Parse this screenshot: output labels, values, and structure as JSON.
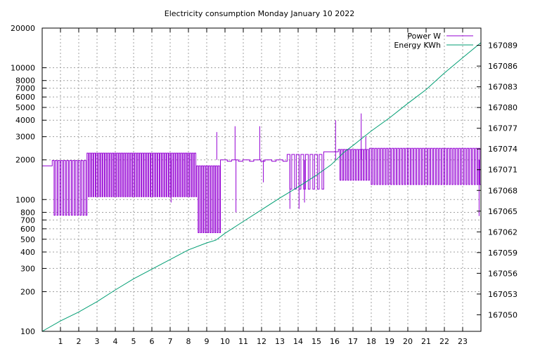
{
  "chart_data": {
    "type": "line",
    "title": "Electricity consumption Monday January 10 2022",
    "x": {
      "range": [
        0,
        24
      ],
      "tick_labels": [
        "1",
        "2",
        "3",
        "4",
        "5",
        "6",
        "7",
        "8",
        "9",
        "10",
        "11",
        "12",
        "13",
        "14",
        "15",
        "16",
        "17",
        "18",
        "19",
        "20",
        "21",
        "22",
        "23"
      ]
    },
    "y_left": {
      "scale": "log",
      "range": [
        100,
        20000
      ],
      "tick_labels": [
        "100",
        "200",
        "300",
        "400",
        "500",
        "600",
        "700",
        "800",
        "1000",
        "2000",
        "3000",
        "4000",
        "5000",
        "6000",
        "7000",
        "8000",
        "10000",
        "20000"
      ]
    },
    "y_right": {
      "range": [
        167047.6,
        167091.5
      ],
      "tick_labels": [
        "167050",
        "167053",
        "167056",
        "167059",
        "167062",
        "167065",
        "167068",
        "167071",
        "167074",
        "167077",
        "167080",
        "167083",
        "167086",
        "167089"
      ]
    },
    "grid": true,
    "legend_position": "top-right",
    "series": [
      {
        "name": "Power W",
        "axis": "left",
        "color": "#9400d3",
        "segments": [
          {
            "x0": 0.0,
            "x1": 0.55,
            "hi": 1800,
            "lo": 1800,
            "n": 1
          },
          {
            "x0": 0.55,
            "x1": 2.45,
            "hi": 1980,
            "lo": 760,
            "n": 12
          },
          {
            "x0": 2.45,
            "x1": 8.45,
            "hi": 2250,
            "lo": 1050,
            "n": 48
          },
          {
            "x0": 8.45,
            "x1": 9.75,
            "hi": 1800,
            "lo": 560,
            "n": 10
          },
          {
            "x0": 9.75,
            "x1": 13.4,
            "hi": 2000,
            "lo": 1950,
            "n": 6
          },
          {
            "x0": 13.4,
            "x1": 15.4,
            "hi": 2200,
            "lo": 1200,
            "n": 8
          },
          {
            "x0": 15.4,
            "x1": 16.2,
            "hi": 2300,
            "lo": 2300,
            "n": 1
          },
          {
            "x0": 16.2,
            "x1": 17.9,
            "hi": 2400,
            "lo": 1400,
            "n": 12
          },
          {
            "x0": 17.9,
            "x1": 24.0,
            "hi": 2450,
            "lo": 1300,
            "n": 40
          }
        ],
        "spikes": [
          {
            "x": 9.55,
            "y": 3250
          },
          {
            "x": 10.55,
            "y": 3600
          },
          {
            "x": 11.9,
            "y": 3600
          },
          {
            "x": 12.1,
            "y": 1350
          },
          {
            "x": 13.55,
            "y": 850
          },
          {
            "x": 14.05,
            "y": 850
          },
          {
            "x": 14.35,
            "y": 950
          },
          {
            "x": 16.05,
            "y": 4000
          },
          {
            "x": 17.45,
            "y": 4500
          },
          {
            "x": 17.7,
            "y": 3000
          },
          {
            "x": 10.6,
            "y": 800
          },
          {
            "x": 7.05,
            "y": 950
          },
          {
            "x": 23.9,
            "y": 750
          }
        ]
      },
      {
        "name": "Energy KWh",
        "axis": "right",
        "color": "#009e73",
        "x": [
          0,
          1,
          2,
          3,
          4,
          5,
          6,
          7,
          8,
          9,
          9.5,
          10,
          11,
          12,
          13,
          14,
          15,
          15.8,
          16.5,
          17,
          18,
          19,
          20,
          21,
          22,
          23,
          24
        ],
        "values": [
          167047.6,
          167049.1,
          167050.4,
          167051.9,
          167053.6,
          167055.2,
          167056.6,
          167058.0,
          167059.4,
          167060.4,
          167060.8,
          167061.8,
          167063.5,
          167065.2,
          167066.9,
          167068.5,
          167070.2,
          167071.7,
          167073.5,
          167074.5,
          167076.6,
          167078.5,
          167080.6,
          167082.6,
          167085.0,
          167087.2,
          167089.4
        ]
      }
    ]
  }
}
